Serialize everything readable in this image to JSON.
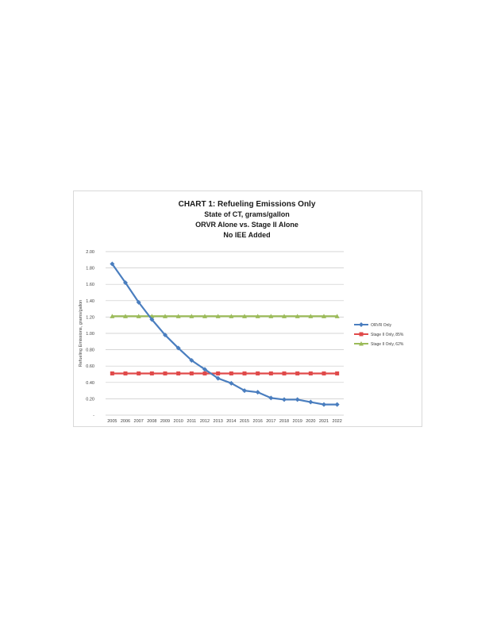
{
  "chart_data": {
    "type": "line",
    "title": [
      "CHART 1: Refueling Emissions Only",
      "State of CT, grams/gallon",
      "ORVR Alone vs. Stage II Alone",
      "No IEE Added"
    ],
    "xlabel": "",
    "ylabel": "Refueling Emissions, grams/gallon",
    "categories": [
      "2005",
      "2006",
      "2007",
      "2008",
      "2009",
      "2010",
      "2011",
      "2012",
      "2013",
      "2014",
      "2015",
      "2016",
      "2017",
      "2018",
      "2019",
      "2020",
      "2021",
      "2022"
    ],
    "ylim": [
      0,
      2.0
    ],
    "ytick_labels": [
      "-",
      "0.20",
      "0.40",
      "0.60",
      "0.80",
      "1.00",
      "1.20",
      "1.40",
      "1.60",
      "1.80",
      "2.00"
    ],
    "grid": true,
    "legend_position": "right",
    "series": [
      {
        "name": "ORVR Only",
        "color": "#4a7ebf",
        "marker": "diamond",
        "values": [
          1.85,
          1.62,
          1.38,
          1.17,
          0.98,
          0.82,
          0.67,
          0.56,
          0.45,
          0.39,
          0.3,
          0.28,
          0.21,
          0.19,
          0.19,
          0.16,
          0.13,
          0.13
        ]
      },
      {
        "name": "Stage II Only, 85%",
        "color": "#e04a4a",
        "marker": "square",
        "values": [
          0.51,
          0.51,
          0.51,
          0.51,
          0.51,
          0.51,
          0.51,
          0.51,
          0.51,
          0.51,
          0.51,
          0.51,
          0.51,
          0.51,
          0.51,
          0.51,
          0.51,
          0.51
        ]
      },
      {
        "name": "Stage II Only, 62%",
        "color": "#9bbb59",
        "marker": "triangle",
        "values": [
          1.21,
          1.21,
          1.21,
          1.21,
          1.21,
          1.21,
          1.21,
          1.21,
          1.21,
          1.21,
          1.21,
          1.21,
          1.21,
          1.21,
          1.21,
          1.21,
          1.21,
          1.21
        ]
      }
    ]
  }
}
